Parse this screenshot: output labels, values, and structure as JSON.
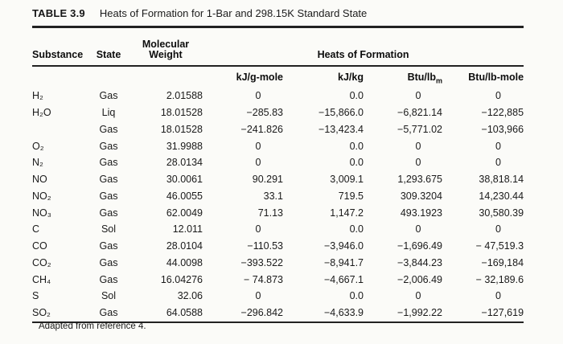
{
  "title": {
    "number": "TABLE 3.9",
    "caption": "Heats of Formation for 1-Bar and 298.15K Standard State"
  },
  "table": {
    "headers": {
      "substance": "Substance",
      "state": "State",
      "mol_weight_line1": "Molecular",
      "mol_weight_line2": "Weight",
      "group": "Heats of Formation"
    },
    "units": {
      "kj_gmole": "kJ/g-mole",
      "kj_kg": "kJ/kg",
      "btu_lbm_base": "Btu/lb",
      "btu_lbm_sub": "m",
      "btu_lbmole": "Btu/lb-mole"
    },
    "rows": [
      {
        "substance": "H₂",
        "state": "Gas",
        "mol_weight": "2.01588",
        "kj_gmole": "0",
        "kj_kg": "0.0",
        "btu_lbm": "0",
        "btu_lbmole": "0"
      },
      {
        "substance": "H₂O",
        "state": "Liq",
        "mol_weight": "18.01528",
        "kj_gmole": "−285.83",
        "kj_kg": "−15,866.0",
        "btu_lbm": "−6,821.14",
        "btu_lbmole": "−122,885"
      },
      {
        "substance": "",
        "state": "Gas",
        "mol_weight": "18.01528",
        "kj_gmole": "−241.826",
        "kj_kg": "−13,423.4",
        "btu_lbm": "−5,771.02",
        "btu_lbmole": "−103,966"
      },
      {
        "substance": "O₂",
        "state": "Gas",
        "mol_weight": "31.9988",
        "kj_gmole": "0",
        "kj_kg": "0.0",
        "btu_lbm": "0",
        "btu_lbmole": "0"
      },
      {
        "substance": "N₂",
        "state": "Gas",
        "mol_weight": "28.0134",
        "kj_gmole": "0",
        "kj_kg": "0.0",
        "btu_lbm": "0",
        "btu_lbmole": "0"
      },
      {
        "substance": "NO",
        "state": "Gas",
        "mol_weight": "30.0061",
        "kj_gmole": "90.291",
        "kj_kg": "3,009.1",
        "btu_lbm": "1,293.675",
        "btu_lbmole": "38,818.14"
      },
      {
        "substance": "NO₂",
        "state": "Gas",
        "mol_weight": "46.0055",
        "kj_gmole": "33.1",
        "kj_kg": "719.5",
        "btu_lbm": "309.3204",
        "btu_lbmole": "14,230.44"
      },
      {
        "substance": "NO₃",
        "state": "Gas",
        "mol_weight": "62.0049",
        "kj_gmole": "71.13",
        "kj_kg": "1,147.2",
        "btu_lbm": "493.1923",
        "btu_lbmole": "30,580.39"
      },
      {
        "substance": "C",
        "state": "Sol",
        "mol_weight": "12.011",
        "kj_gmole": "0",
        "kj_kg": "0.0",
        "btu_lbm": "0",
        "btu_lbmole": "0"
      },
      {
        "substance": "CO",
        "state": "Gas",
        "mol_weight": "28.0104",
        "kj_gmole": "−110.53",
        "kj_kg": "−3,946.0",
        "btu_lbm": "−1,696.49",
        "btu_lbmole": "− 47,519.3"
      },
      {
        "substance": "CO₂",
        "state": "Gas",
        "mol_weight": "44.0098",
        "kj_gmole": "−393.522",
        "kj_kg": "−8,941.7",
        "btu_lbm": "−3,844.23",
        "btu_lbmole": "−169,184"
      },
      {
        "substance": "CH₄",
        "state": "Gas",
        "mol_weight": "16.04276",
        "kj_gmole": "− 74.873",
        "kj_kg": "−4,667.1",
        "btu_lbm": "−2,006.49",
        "btu_lbmole": "− 32,189.6"
      },
      {
        "substance": "S",
        "state": "Sol",
        "mol_weight": "32.06",
        "kj_gmole": "0",
        "kj_kg": "0.0",
        "btu_lbm": "0",
        "btu_lbmole": "0"
      },
      {
        "substance": "SO₂",
        "state": "Gas",
        "mol_weight": "64.0588",
        "kj_gmole": "−296.842",
        "kj_kg": "−4,633.9",
        "btu_lbm": "−1,992.22",
        "btu_lbmole": "−127,619"
      }
    ]
  },
  "footer": {
    "note": "Adapted from reference 4."
  }
}
